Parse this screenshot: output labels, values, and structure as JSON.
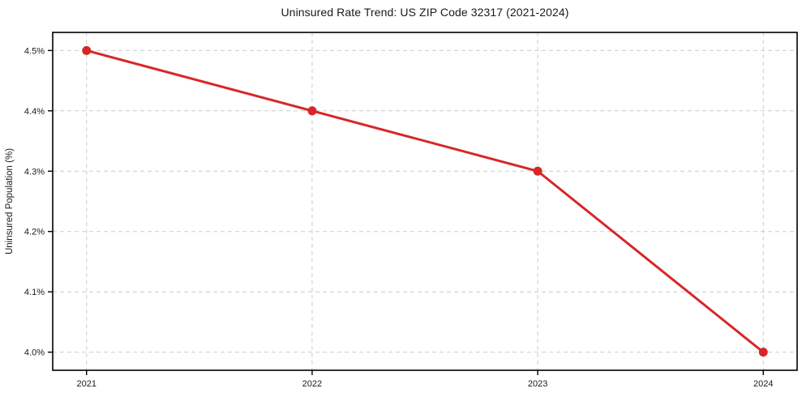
{
  "chart_data": {
    "type": "line",
    "title": "Uninsured Rate Trend: US ZIP Code 32317 (2021-2024)",
    "xlabel": "",
    "ylabel": "Uninsured Population (%)",
    "x": [
      2021,
      2022,
      2023,
      2024
    ],
    "values": [
      4.5,
      4.4,
      4.3,
      4.0
    ],
    "series_name": "Uninsured rate",
    "xticklabels": [
      "2021",
      "2022",
      "2023",
      "2024"
    ],
    "yticks": [
      4.0,
      4.1,
      4.2,
      4.3,
      4.4,
      4.5
    ],
    "yticklabels": [
      "4.0%",
      "4.1%",
      "4.2%",
      "4.3%",
      "4.4%",
      "4.5%"
    ],
    "xlim": [
      2020.85,
      2024.15
    ],
    "ylim": [
      3.97,
      4.53
    ],
    "grid": true,
    "grid_style": "dashed",
    "legend": "none",
    "line_color": "#d62728",
    "marker": "circle",
    "grid_color": "#cccccc",
    "spine_color": "#000000",
    "text_color": "#1a1a1a",
    "background_color": "#ffffff"
  }
}
